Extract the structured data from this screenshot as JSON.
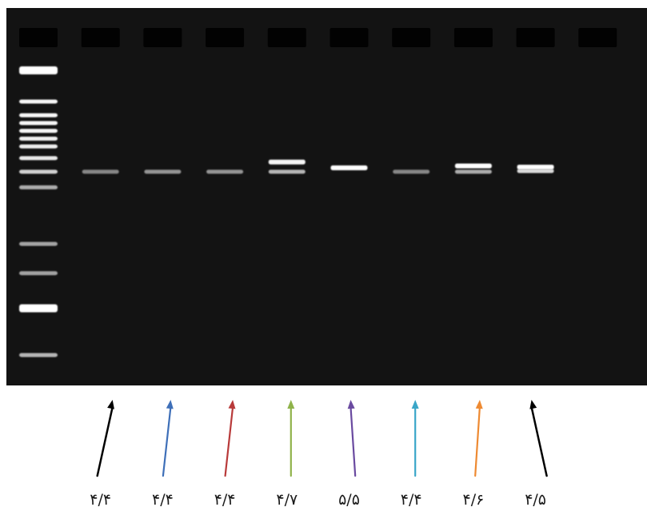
{
  "gel": {
    "background": "#131313",
    "well_color": "#020202",
    "well_count": 10
  },
  "ladder": {
    "bands": [
      {
        "level": 0.98,
        "intensity": 1.0
      },
      {
        "level": 0.9,
        "intensity": 0.95
      },
      {
        "level": 0.865,
        "intensity": 0.95
      },
      {
        "level": 0.845,
        "intensity": 0.95
      },
      {
        "level": 0.825,
        "intensity": 0.95
      },
      {
        "level": 0.805,
        "intensity": 0.92
      },
      {
        "level": 0.785,
        "intensity": 0.9
      },
      {
        "level": 0.755,
        "intensity": 0.88
      },
      {
        "level": 0.72,
        "intensity": 0.75
      },
      {
        "level": 0.68,
        "intensity": 0.55
      },
      {
        "level": 0.535,
        "intensity": 0.5
      },
      {
        "level": 0.46,
        "intensity": 0.5
      },
      {
        "level": 0.37,
        "intensity": 1.0
      },
      {
        "level": 0.25,
        "intensity": 0.6
      }
    ]
  },
  "lanes": [
    {
      "label": "۴/۴",
      "arrow_color": "#000000",
      "arrow_tilt": 1,
      "bands": [
        {
          "level": 0.72,
          "intensity": 0.35
        }
      ]
    },
    {
      "label": "۴/۴",
      "arrow_color": "#3e6fb8",
      "arrow_tilt": 0.5,
      "bands": [
        {
          "level": 0.72,
          "intensity": 0.42
        }
      ]
    },
    {
      "label": "۴/۴",
      "arrow_color": "#b83a3a",
      "arrow_tilt": 0.5,
      "bands": [
        {
          "level": 0.72,
          "intensity": 0.42
        }
      ]
    },
    {
      "label": "۴/۷",
      "arrow_color": "#8fb34a",
      "arrow_tilt": 0,
      "bands": [
        {
          "level": 0.745,
          "intensity": 0.95
        },
        {
          "level": 0.72,
          "intensity": 0.6
        }
      ]
    },
    {
      "label": "۵/۵",
      "arrow_color": "#6a4aa0",
      "arrow_tilt": -0.3,
      "bands": [
        {
          "level": 0.73,
          "intensity": 1.0
        }
      ]
    },
    {
      "label": "۴/۴",
      "arrow_color": "#3aa6c8",
      "arrow_tilt": 0,
      "bands": [
        {
          "level": 0.72,
          "intensity": 0.35
        }
      ]
    },
    {
      "label": "۴/۶",
      "arrow_color": "#ee8a32",
      "arrow_tilt": 0.3,
      "bands": [
        {
          "level": 0.735,
          "intensity": 1.0
        },
        {
          "level": 0.72,
          "intensity": 0.55
        }
      ]
    },
    {
      "label": "۴/۵",
      "arrow_color": "#000000",
      "arrow_tilt": -1,
      "bands": [
        {
          "level": 0.732,
          "intensity": 1.0
        },
        {
          "level": 0.722,
          "intensity": 0.8
        }
      ]
    },
    {
      "label": "",
      "arrow_color": "",
      "arrow_tilt": 0,
      "bands": []
    }
  ]
}
